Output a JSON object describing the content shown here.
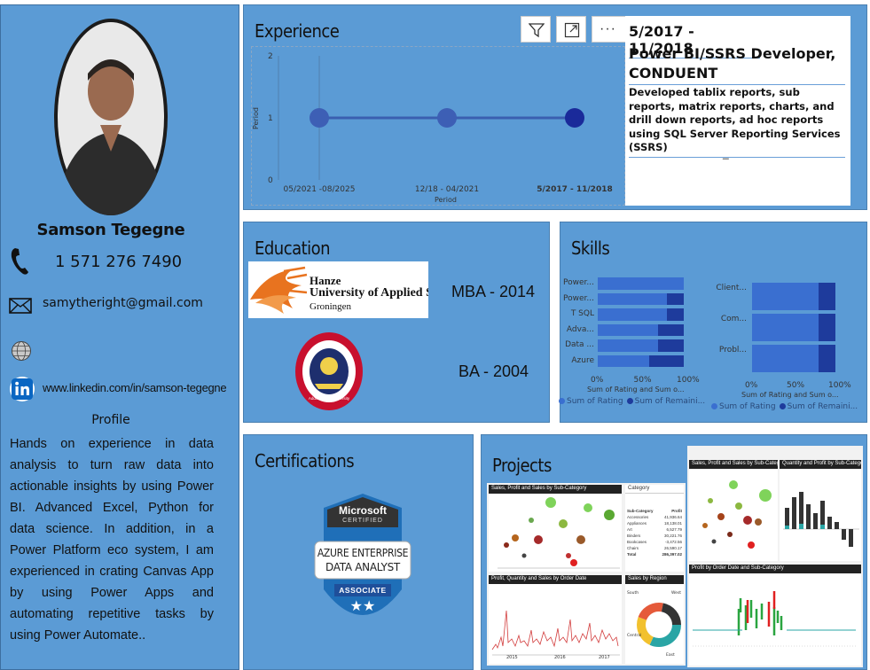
{
  "profile": {
    "name": "Samson Tegegne",
    "phone": "1 571 276 7490",
    "email": "samytheright@gmail.com",
    "linkedin": "www.linkedin.com/in/samson-tegegne",
    "profile_heading": "Profile",
    "summary": "Hands on experience in data analysis to turn raw data into actionable insights by using Power BI. Advanced Excel, Python for data science. In addition, in a Power Platform eco system, I am experienced in crating Canvas App by using Power Apps and automating repetitive tasks by using Power Automate..",
    "icons": [
      "phone-icon",
      "mail-icon",
      "globe-icon",
      "linkedin-icon"
    ]
  },
  "experience": {
    "title": "Experience",
    "toolbar": [
      "filter-icon",
      "focus-mode-icon",
      "more-options-icon"
    ],
    "chart_data": {
      "type": "scatter",
      "categories": [
        "05/2021 -08/2025",
        "12/18 - 04/2021",
        "5/2017 - 11/2018"
      ],
      "values": [
        1,
        1,
        1
      ],
      "xlabel": "Period",
      "ylabel": "Period",
      "ylim": [
        0,
        2
      ],
      "yticks": [
        "2",
        "1",
        "0"
      ],
      "grid": false,
      "highlighted": "5/2017 - 11/2018"
    },
    "detail": {
      "period": "5/2017 - 11/2018",
      "role": "Power BI/SSRS Developer, CONDUENT",
      "description": " Developed tablix reports, sub reports, matrix reports, charts, and drill down reports, ad hoc reports using SQL Server Reporting Services (SSRS)",
      "footer": "_"
    }
  },
  "education": {
    "title": "Education",
    "items": [
      {
        "school_line1": "Hanze",
        "school_line2": "University of Applied S",
        "school_line3": "Groningen",
        "degree": "MBA - 2014"
      },
      {
        "seal_text": "Addis Ababa University",
        "degree": "BA - 2004"
      }
    ]
  },
  "skills": {
    "title": "Skills",
    "colors": {
      "rating": "#3a6fd0",
      "remaining": "#1e3b9c"
    },
    "chart_data": [
      {
        "type": "bar",
        "orientation": "horizontal",
        "stacked": true,
        "categories": [
          "Power...",
          "Power...",
          "T SQL",
          "Adva...",
          "Data ...",
          "Azure"
        ],
        "series": [
          {
            "name": "Sum of Rating",
            "values": [
              100,
              80,
              80,
              70,
              70,
              60
            ]
          },
          {
            "name": "Sum of Remaini...",
            "values": [
              0,
              20,
              20,
              30,
              30,
              40
            ]
          }
        ],
        "xticks": [
          "0%",
          "50%",
          "100%"
        ],
        "xlabel": "Sum of Rating and Sum o...",
        "legend": "bottom"
      },
      {
        "type": "bar",
        "orientation": "horizontal",
        "stacked": true,
        "categories": [
          "Client...",
          "Com...",
          "Probl..."
        ],
        "series": [
          {
            "name": "Sum of Rating",
            "values": [
              80,
              80,
              80
            ]
          },
          {
            "name": "Sum of Remaini...",
            "values": [
              20,
              20,
              20
            ]
          }
        ],
        "xticks": [
          "0%",
          "50%",
          "100%"
        ],
        "xlabel": "Sum of Rating and Sum o...",
        "legend": "bottom"
      }
    ]
  },
  "certifications": {
    "title": "Certifications",
    "badge": {
      "brand": "Microsoft",
      "certified": "CERTIFIED",
      "line1": "AZURE ENTERPRISE",
      "line2": "DATA ANALYST",
      "level": "ASSOCIATE",
      "stars": "★★"
    }
  },
  "projects": {
    "title": "Projects",
    "thumb1": {
      "scatter_title": "Sales, Profit and Sales by Sub-Category",
      "table_title": "Category",
      "table_head": [
        "Sub-Category",
        "Profit"
      ],
      "table_rows": [
        [
          "Accessories",
          "41,936.64"
        ],
        [
          "Appliances",
          "18,138.01"
        ],
        [
          "Art",
          "6,527.79"
        ],
        [
          "Binders",
          "30,221.76"
        ],
        [
          "Bookcases",
          "-3,472.56"
        ],
        [
          "Chairs",
          "26,590.17"
        ]
      ],
      "table_total": [
        "Total",
        "286,397.02"
      ],
      "line_title": "Profit, Quantity and Sales by Order Date",
      "donut_title": "Sales by Region",
      "donut_labels": [
        "South",
        "West",
        "Central",
        "East"
      ],
      "line_x": [
        "2015",
        "2016",
        "2017"
      ]
    },
    "thumb2": {
      "scatter_title": "Sales, Profit and Sales by Sub-Category",
      "bar_title": "Quantity and Profit by Sub-Category",
      "line_title": "Profit by Order Date and Sub-Category"
    }
  }
}
